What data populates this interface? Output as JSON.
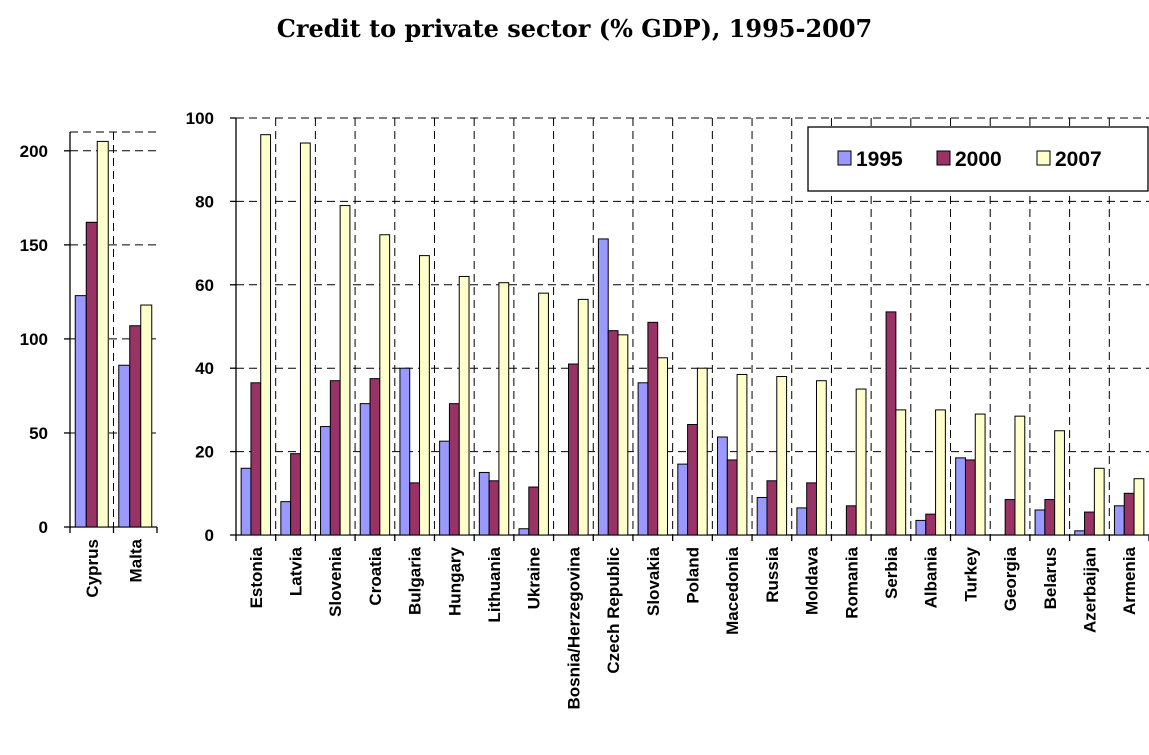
{
  "title": "Credit to private sector (% GDP), 1995-2007",
  "colors": {
    "1995": "#9999ff",
    "2000": "#993366",
    "2007": "#ffffcc"
  },
  "chart_data": [
    {
      "type": "bar",
      "categories": [
        "Cyprus",
        "Malta"
      ],
      "series": [
        {
          "name": "1995",
          "values": [
            123,
            86
          ]
        },
        {
          "name": "2000",
          "values": [
            162,
            107
          ]
        },
        {
          "name": "2007",
          "values": [
            205,
            118
          ]
        }
      ],
      "ylim": [
        0,
        210
      ],
      "yticks": [
        0,
        50,
        100,
        150,
        200
      ],
      "grid": true
    },
    {
      "type": "bar",
      "categories": [
        "Estonia",
        "Latvia",
        "Slovenia",
        "Croatia",
        "Bulgaria",
        "Hungary",
        "Lithuania",
        "Ukraine",
        "Bosnia/Herzegovina",
        "Czech Republic",
        "Slovakia",
        "Poland",
        "Macedonia",
        "Russia",
        "Moldava",
        "Romania",
        "Serbia",
        "Albania",
        "Turkey",
        "Georgia",
        "Belarus",
        "Azerbaijan",
        "Armenia"
      ],
      "series": [
        {
          "name": "1995",
          "values": [
            16,
            8,
            26,
            31.5,
            40,
            22.5,
            15,
            1.5,
            0,
            71,
            36.5,
            17,
            23.5,
            9,
            6.5,
            0,
            0,
            3.5,
            18.5,
            0,
            6,
            1,
            7
          ]
        },
        {
          "name": "2000",
          "values": [
            36.5,
            19.5,
            37,
            37.5,
            12.5,
            31.5,
            13,
            11.5,
            41,
            49,
            51,
            26.5,
            18,
            13,
            12.5,
            7,
            53.5,
            5,
            18,
            8.5,
            8.5,
            5.5,
            10
          ]
        },
        {
          "name": "2007",
          "values": [
            96,
            94,
            79,
            72,
            67,
            62,
            60.5,
            58,
            56.5,
            48,
            42.5,
            40,
            38.5,
            38,
            37,
            35,
            30,
            30,
            29,
            28.5,
            25,
            16,
            13.5
          ]
        }
      ],
      "ylim": [
        0,
        100
      ],
      "yticks": [
        0,
        20,
        40,
        60,
        80,
        100
      ],
      "legend": {
        "placement": "top-right",
        "entries": [
          "1995",
          "2000",
          "2007"
        ]
      },
      "grid": true
    }
  ]
}
